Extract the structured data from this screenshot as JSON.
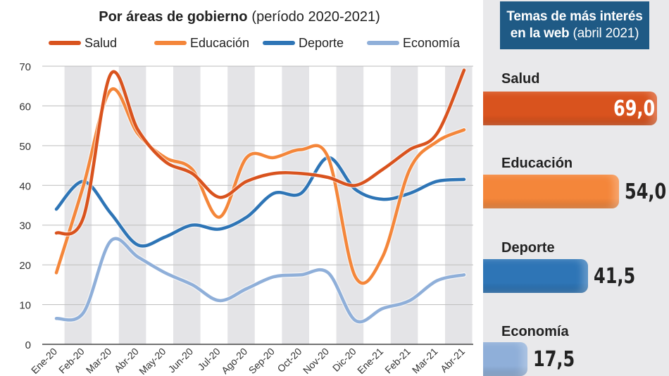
{
  "chart_data": {
    "type": "line",
    "title": "Por áreas de gobierno",
    "subtitle": "(período 2020-2021)",
    "categories": [
      "Ene-20",
      "Feb-20",
      "Mar-20",
      "Abr-20",
      "May-20",
      "Jun-20",
      "Jul-20",
      "Ago-20",
      "Sep-20",
      "Oct-20",
      "Nov-20",
      "Dic-20",
      "Ene-21",
      "Feb-21",
      "Mar-21",
      "Abr-21"
    ],
    "ylim": [
      0,
      70
    ],
    "yticks": [
      0,
      10,
      20,
      30,
      40,
      50,
      60,
      70
    ],
    "series": [
      {
        "name": "Salud",
        "color": "#d9531e",
        "values": [
          28,
          32,
          68,
          54,
          46,
          43,
          37,
          41,
          43,
          43,
          42,
          40,
          44,
          49,
          53,
          69
        ]
      },
      {
        "name": "Educación",
        "color": "#f4863a",
        "values": [
          18,
          40,
          64,
          53,
          47,
          44,
          32,
          47,
          47,
          49,
          47,
          17,
          22,
          44,
          51,
          54
        ]
      },
      {
        "name": "Deporte",
        "color": "#2e75b6",
        "values": [
          34,
          41,
          33,
          25,
          27,
          30,
          29,
          32,
          38,
          38,
          47,
          39,
          36.5,
          38,
          41,
          41.5
        ]
      },
      {
        "name": "Economía",
        "color": "#8fafd9",
        "values": [
          6.5,
          8,
          26,
          22,
          18,
          15,
          11,
          14,
          17,
          17.5,
          18,
          6,
          9,
          11,
          16,
          17.5
        ]
      }
    ],
    "legend": "top"
  },
  "side_panel": {
    "title_bold": "Temas de más interés",
    "title_line2_bold": "en la web",
    "title_line2_rest": " (abril 2021)",
    "bars": [
      {
        "label": "Salud",
        "value": 69.0,
        "display": "69,0",
        "color": "#d9531e"
      },
      {
        "label": "Educación",
        "value": 54.0,
        "display": "54,0",
        "color": "#f4863a"
      },
      {
        "label": "Deporte",
        "value": 41.5,
        "display": "41,5",
        "color": "#2e75b6"
      },
      {
        "label": "Economía",
        "value": 17.5,
        "display": "17,5",
        "color": "#8fafd9"
      }
    ]
  }
}
